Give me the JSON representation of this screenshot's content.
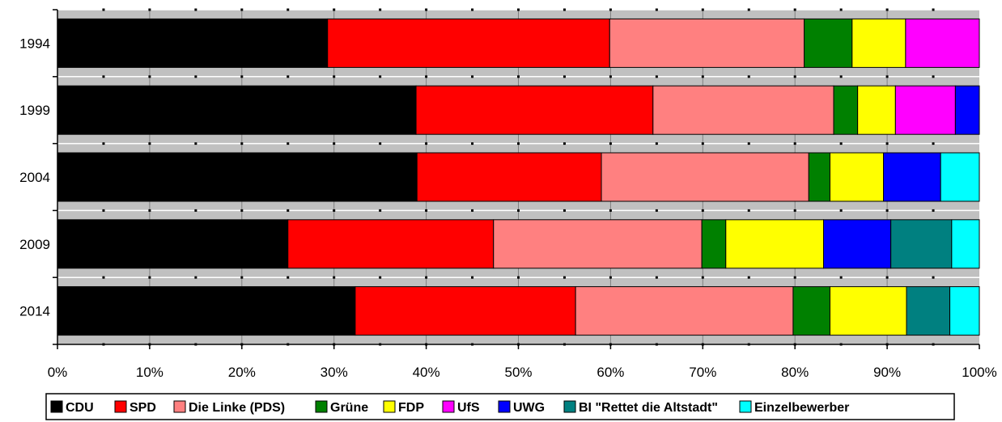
{
  "chart_data": {
    "type": "bar",
    "orientation": "horizontal",
    "stacked": true,
    "normalized": true,
    "title": "",
    "xlabel": "",
    "ylabel": "",
    "xlim": [
      0,
      100
    ],
    "x_ticks": [
      "0%",
      "10%",
      "20%",
      "30%",
      "40%",
      "50%",
      "60%",
      "70%",
      "80%",
      "90%",
      "100%"
    ],
    "categories": [
      "1994",
      "1999",
      "2004",
      "2009",
      "2014"
    ],
    "legend_position": "bottom",
    "grid": true,
    "series": [
      {
        "name": "CDU",
        "color": "#000000",
        "values": [
          29.3,
          38.9,
          39.0,
          25.0,
          32.3
        ]
      },
      {
        "name": "SPD",
        "color": "#ff0000",
        "values": [
          30.6,
          25.7,
          20.0,
          22.3,
          23.9
        ]
      },
      {
        "name": "Die Linke (PDS)",
        "color": "#ff8080",
        "values": [
          21.1,
          19.6,
          22.5,
          22.6,
          23.6
        ]
      },
      {
        "name": "Grüne",
        "color": "#008000",
        "values": [
          5.2,
          2.6,
          2.3,
          2.6,
          4.0
        ]
      },
      {
        "name": "FDP",
        "color": "#ffff00",
        "values": [
          5.8,
          4.1,
          5.8,
          10.6,
          8.3
        ]
      },
      {
        "name": "UfS",
        "color": "#ff00ff",
        "values": [
          8.0,
          6.5,
          0,
          0,
          0
        ]
      },
      {
        "name": "UWG",
        "color": "#0000ff",
        "values": [
          0,
          2.6,
          6.2,
          7.3,
          0
        ]
      },
      {
        "name": "BI \"Rettet die Altstadt\"",
        "color": "#008080",
        "values": [
          0,
          0,
          0,
          6.6,
          4.7
        ]
      },
      {
        "name": "Einzelbewerber",
        "color": "#00ffff",
        "values": [
          0,
          0,
          4.2,
          3.0,
          3.2
        ]
      }
    ]
  }
}
